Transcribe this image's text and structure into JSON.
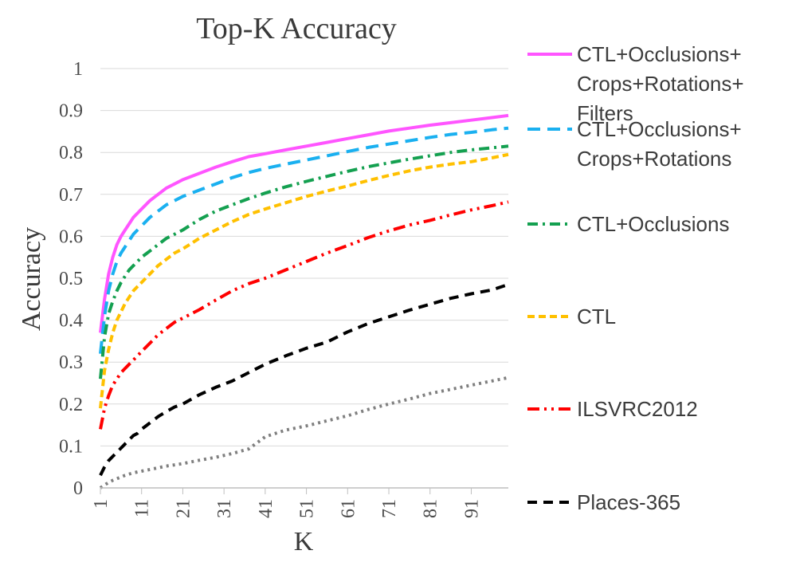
{
  "chart_data": {
    "type": "line",
    "title": "Top-K Accuracy",
    "xlabel": "K",
    "ylabel": "Accuracy",
    "xlim": [
      1,
      100
    ],
    "ylim": [
      0,
      1
    ],
    "x_ticks": [
      1,
      11,
      21,
      31,
      41,
      51,
      61,
      71,
      81,
      91
    ],
    "y_ticks": [
      0,
      0.1,
      0.2,
      0.3,
      0.4,
      0.5,
      0.6,
      0.7,
      0.8,
      0.9,
      1
    ],
    "grid": "horizontal",
    "legend_position": "right",
    "x": [
      1,
      2,
      3,
      4,
      5,
      6,
      7,
      8,
      9,
      10,
      11,
      13,
      15,
      17,
      19,
      21,
      25,
      29,
      33,
      37,
      41,
      46,
      51,
      56,
      61,
      66,
      71,
      76,
      81,
      86,
      91,
      96,
      100
    ],
    "series": [
      {
        "name": "CTL+Occlusions+Crops+Rotations+Filters",
        "color": "#ff55ff",
        "style": "solid",
        "values": [
          0.37,
          0.45,
          0.51,
          0.55,
          0.58,
          0.6,
          0.615,
          0.63,
          0.645,
          0.655,
          0.665,
          0.685,
          0.7,
          0.715,
          0.725,
          0.735,
          0.75,
          0.765,
          0.778,
          0.79,
          0.797,
          0.806,
          0.815,
          0.824,
          0.833,
          0.842,
          0.851,
          0.858,
          0.865,
          0.871,
          0.877,
          0.883,
          0.888
        ]
      },
      {
        "name": "CTL+Occlusions+Crops+Rotations",
        "color": "#1ab0f0",
        "style": "longdash",
        "values": [
          0.32,
          0.41,
          0.47,
          0.51,
          0.54,
          0.56,
          0.575,
          0.59,
          0.605,
          0.615,
          0.625,
          0.645,
          0.66,
          0.675,
          0.685,
          0.695,
          0.71,
          0.725,
          0.74,
          0.752,
          0.762,
          0.772,
          0.782,
          0.792,
          0.802,
          0.812,
          0.82,
          0.828,
          0.836,
          0.843,
          0.848,
          0.854,
          0.858
        ]
      },
      {
        "name": "CTL+Occlusions",
        "color": "#14a050",
        "style": "dashdot",
        "values": [
          0.26,
          0.36,
          0.415,
          0.445,
          0.47,
          0.49,
          0.505,
          0.52,
          0.53,
          0.54,
          0.55,
          0.565,
          0.58,
          0.595,
          0.605,
          0.615,
          0.64,
          0.66,
          0.675,
          0.69,
          0.703,
          0.718,
          0.731,
          0.743,
          0.755,
          0.766,
          0.775,
          0.784,
          0.792,
          0.8,
          0.806,
          0.811,
          0.815
        ]
      },
      {
        "name": "CTL",
        "color": "#ffc000",
        "style": "shortdash",
        "values": [
          0.19,
          0.28,
          0.33,
          0.37,
          0.4,
          0.42,
          0.44,
          0.455,
          0.47,
          0.48,
          0.49,
          0.51,
          0.53,
          0.545,
          0.56,
          0.57,
          0.595,
          0.615,
          0.635,
          0.652,
          0.665,
          0.68,
          0.695,
          0.708,
          0.72,
          0.733,
          0.745,
          0.756,
          0.765,
          0.772,
          0.778,
          0.787,
          0.795
        ]
      },
      {
        "name": "ILSVRC2012",
        "color": "#ff0000",
        "style": "dashdotdot",
        "values": [
          0.14,
          0.19,
          0.22,
          0.245,
          0.26,
          0.275,
          0.285,
          0.295,
          0.305,
          0.315,
          0.325,
          0.345,
          0.365,
          0.38,
          0.395,
          0.405,
          0.425,
          0.448,
          0.47,
          0.487,
          0.5,
          0.52,
          0.54,
          0.56,
          0.578,
          0.597,
          0.613,
          0.627,
          0.638,
          0.651,
          0.663,
          0.673,
          0.682
        ]
      },
      {
        "name": "Places-365",
        "color": "#000000",
        "style": "dash",
        "values": [
          0.03,
          0.05,
          0.065,
          0.075,
          0.085,
          0.095,
          0.105,
          0.115,
          0.125,
          0.13,
          0.14,
          0.155,
          0.17,
          0.182,
          0.193,
          0.2,
          0.222,
          0.24,
          0.255,
          0.275,
          0.295,
          0.315,
          0.333,
          0.348,
          0.372,
          0.392,
          0.408,
          0.424,
          0.438,
          0.452,
          0.463,
          0.472,
          0.485
        ]
      },
      {
        "color": "#7f7f7f",
        "style": "dot",
        "values": [
          0.0,
          0.007,
          0.013,
          0.018,
          0.022,
          0.026,
          0.03,
          0.033,
          0.036,
          0.038,
          0.04,
          0.044,
          0.048,
          0.052,
          0.055,
          0.058,
          0.066,
          0.073,
          0.082,
          0.093,
          0.122,
          0.138,
          0.148,
          0.16,
          0.172,
          0.187,
          0.2,
          0.212,
          0.225,
          0.235,
          0.245,
          0.255,
          0.263
        ]
      }
    ],
    "legend": [
      {
        "lines": [
          "CTL+Occlusions+",
          "Crops+Rotations+",
          "Filters"
        ],
        "color": "#ff55ff",
        "style": "solid"
      },
      {
        "lines": [
          "CTL+Occlusions+",
          "Crops+Rotations"
        ],
        "color": "#1ab0f0",
        "style": "longdash"
      },
      {
        "lines": [
          "CTL+Occlusions"
        ],
        "color": "#14a050",
        "style": "dashdot"
      },
      {
        "lines": [
          "CTL"
        ],
        "color": "#ffc000",
        "style": "shortdash"
      },
      {
        "lines": [
          "ILSVRC2012"
        ],
        "color": "#ff0000",
        "style": "dashdotdot"
      },
      {
        "lines": [
          "Places-365"
        ],
        "color": "#000000",
        "style": "dash"
      }
    ]
  }
}
